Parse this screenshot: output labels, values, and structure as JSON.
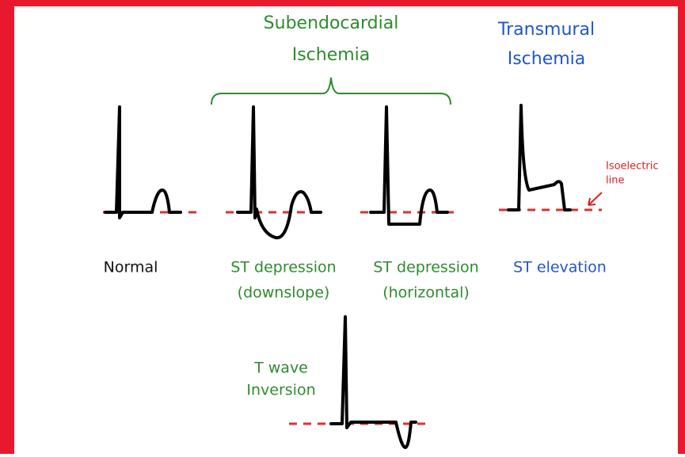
{
  "groups": {
    "subendocardial": [
      "Subendocardial",
      "Ischemia"
    ],
    "transmural": [
      "Transmural",
      "Ischemia"
    ]
  },
  "annotation": [
    "Isoelectric",
    "line"
  ],
  "ecgs": [
    {
      "label": [
        "Normal"
      ]
    },
    {
      "label": [
        "ST depression",
        "(downslope)"
      ]
    },
    {
      "label": [
        "ST depression",
        "(horizontal)"
      ]
    },
    {
      "label": [
        "ST elevation"
      ]
    },
    {
      "label": [
        "T wave",
        "Inversion"
      ]
    }
  ]
}
